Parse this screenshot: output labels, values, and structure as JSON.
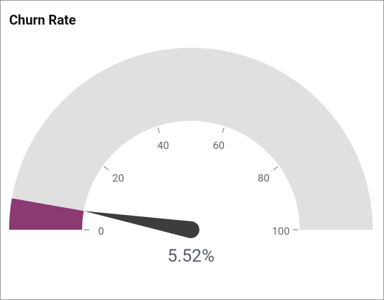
{
  "chart_data": {
    "type": "gauge",
    "title": "Churn Rate",
    "values": [
      5.52
    ],
    "value_labels": [
      "5.52%"
    ],
    "color": "#8b3a72",
    "ylim": [
      0,
      100
    ],
    "yticks": [
      0,
      20,
      40,
      60,
      80,
      100
    ]
  }
}
